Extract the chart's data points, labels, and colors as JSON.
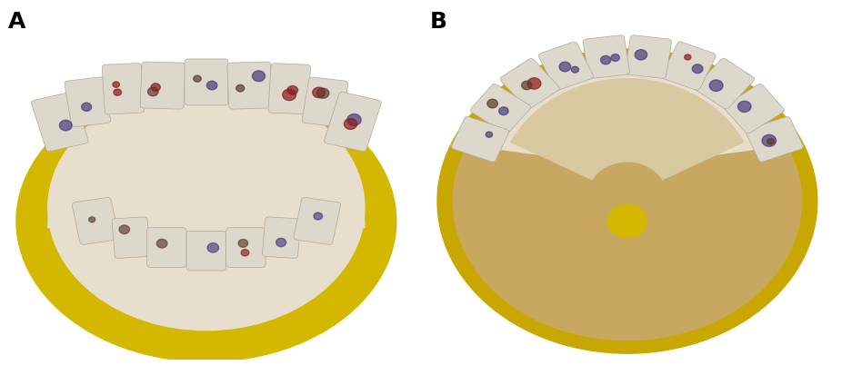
{
  "panel_labels": [
    "A",
    "B"
  ],
  "label_fontsize": 18,
  "label_fontweight": "bold",
  "background_color": "#ffffff",
  "fig_width": 9.26,
  "fig_height": 4.14,
  "dpi": 100,
  "panel_a_bg": "#b8b0a8",
  "panel_b_bg": "#b8b0a8",
  "yellow_color": "#d4b800",
  "yellow_b_color": "#c8a800",
  "gum_color": "#e8dece",
  "tan_color": "#c8a860",
  "inner_tan": "#d8c8a0",
  "tooth_color": "#ddd8cc",
  "tooth_edge": "#b0a898",
  "spot_colors": [
    "#4a3a7a",
    "#8b1a1a",
    "#5a3a2a"
  ],
  "center_dot_color": "#d4b800"
}
